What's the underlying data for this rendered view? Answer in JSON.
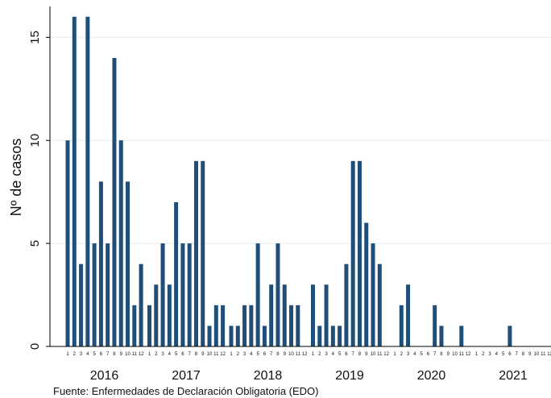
{
  "chart_data": {
    "type": "bar",
    "ylabel": "Nº de casos",
    "xlabel": "",
    "ylim": [
      0,
      16.5
    ],
    "yticks": [
      "0",
      "5",
      "10",
      "15"
    ],
    "ytick_values": [
      0,
      5,
      10,
      15
    ],
    "grid": true,
    "bar_color": "#1f4e79",
    "grid_color": "#e6ecef",
    "month_labels": [
      "1",
      "2",
      "3",
      "4",
      "5",
      "6",
      "7",
      "8",
      "9",
      "10",
      "11",
      "12"
    ],
    "years": [
      {
        "year": "2016",
        "values": [
          10,
          16,
          4,
          16,
          5,
          8,
          5,
          14,
          10,
          8,
          2,
          4
        ]
      },
      {
        "year": "2017",
        "values": [
          2,
          3,
          5,
          3,
          7,
          5,
          5,
          9,
          9,
          1,
          2,
          2
        ]
      },
      {
        "year": "2018",
        "values": [
          1,
          1,
          2,
          2,
          5,
          1,
          3,
          5,
          3,
          2,
          2,
          0
        ]
      },
      {
        "year": "2019",
        "values": [
          3,
          1,
          3,
          1,
          1,
          4,
          9,
          9,
          6,
          5,
          4,
          0
        ]
      },
      {
        "year": "2020",
        "values": [
          0,
          2,
          3,
          0,
          0,
          0,
          2,
          1,
          0,
          0,
          1,
          0
        ]
      },
      {
        "year": "2021",
        "values": [
          0,
          0,
          0,
          0,
          0,
          1,
          0,
          0,
          0,
          0,
          0,
          0
        ]
      }
    ]
  },
  "source_note": "Fuente: Enfermedades de Declaración Obligatoria (EDO)"
}
